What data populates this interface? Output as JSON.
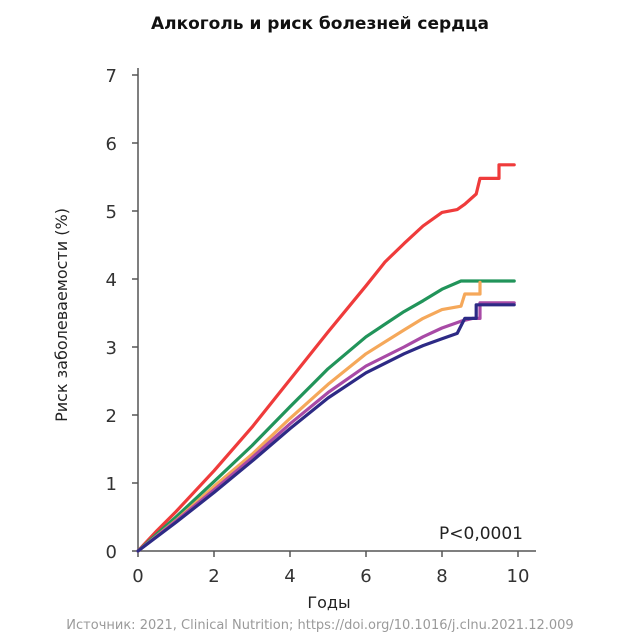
{
  "chart_data": {
    "type": "line",
    "title": "Алкоголь и риск болезней сердца",
    "xlabel": "Годы",
    "ylabel": "Риск заболеваемости (%)",
    "xlim": [
      0,
      10
    ],
    "ylim": [
      0,
      7
    ],
    "xticks": [
      0,
      2,
      4,
      6,
      8,
      10
    ],
    "yticks": [
      0,
      1,
      2,
      3,
      4,
      5,
      6,
      7
    ],
    "grid": false,
    "annotation": "P<0,0001",
    "series": [
      {
        "color": "#ef3b3b",
        "points": [
          [
            0,
            0
          ],
          [
            0.5,
            0.3
          ],
          [
            1,
            0.58
          ],
          [
            2,
            1.18
          ],
          [
            3,
            1.82
          ],
          [
            4,
            2.52
          ],
          [
            5,
            3.22
          ],
          [
            6,
            3.9
          ],
          [
            6.5,
            4.25
          ],
          [
            7,
            4.52
          ],
          [
            7.5,
            4.78
          ],
          [
            8,
            4.98
          ],
          [
            8.4,
            5.02
          ],
          [
            8.6,
            5.1
          ],
          [
            8.9,
            5.25
          ],
          [
            9.0,
            5.48
          ],
          [
            9.5,
            5.48
          ],
          [
            9.5,
            5.68
          ],
          [
            9.9,
            5.68
          ]
        ]
      },
      {
        "color": "#21945a",
        "points": [
          [
            0,
            0
          ],
          [
            1,
            0.5
          ],
          [
            2,
            1.02
          ],
          [
            3,
            1.55
          ],
          [
            4,
            2.12
          ],
          [
            5,
            2.68
          ],
          [
            6,
            3.15
          ],
          [
            7,
            3.52
          ],
          [
            7.5,
            3.68
          ],
          [
            8,
            3.85
          ],
          [
            8.5,
            3.97
          ],
          [
            9,
            3.97
          ],
          [
            9.9,
            3.97
          ]
        ]
      },
      {
        "color": "#f5a85a",
        "points": [
          [
            0,
            0
          ],
          [
            1,
            0.45
          ],
          [
            2,
            0.95
          ],
          [
            3,
            1.42
          ],
          [
            4,
            1.95
          ],
          [
            5,
            2.45
          ],
          [
            6,
            2.9
          ],
          [
            7,
            3.25
          ],
          [
            7.5,
            3.42
          ],
          [
            8,
            3.55
          ],
          [
            8.5,
            3.6
          ],
          [
            8.6,
            3.78
          ],
          [
            9,
            3.78
          ],
          [
            9,
            3.95
          ]
        ]
      },
      {
        "color": "#a84aa6",
        "points": [
          [
            0,
            0
          ],
          [
            1,
            0.44
          ],
          [
            2,
            0.9
          ],
          [
            3,
            1.37
          ],
          [
            4,
            1.87
          ],
          [
            5,
            2.33
          ],
          [
            6,
            2.72
          ],
          [
            7,
            3.0
          ],
          [
            7.5,
            3.15
          ],
          [
            8,
            3.28
          ],
          [
            8.5,
            3.38
          ],
          [
            8.8,
            3.42
          ],
          [
            9.0,
            3.42
          ],
          [
            9.0,
            3.65
          ],
          [
            9.9,
            3.65
          ]
        ]
      },
      {
        "color": "#2d2a85",
        "points": [
          [
            0,
            0
          ],
          [
            1,
            0.42
          ],
          [
            2,
            0.86
          ],
          [
            3,
            1.32
          ],
          [
            4,
            1.8
          ],
          [
            5,
            2.25
          ],
          [
            6,
            2.62
          ],
          [
            7,
            2.9
          ],
          [
            7.5,
            3.02
          ],
          [
            8,
            3.12
          ],
          [
            8.4,
            3.2
          ],
          [
            8.6,
            3.42
          ],
          [
            8.9,
            3.42
          ],
          [
            8.9,
            3.62
          ],
          [
            9.9,
            3.62
          ]
        ]
      }
    ]
  },
  "source": "Источник: 2021, Clinical Nutrition; https://doi.org/10.1016/j.clnu.2021.12.009"
}
